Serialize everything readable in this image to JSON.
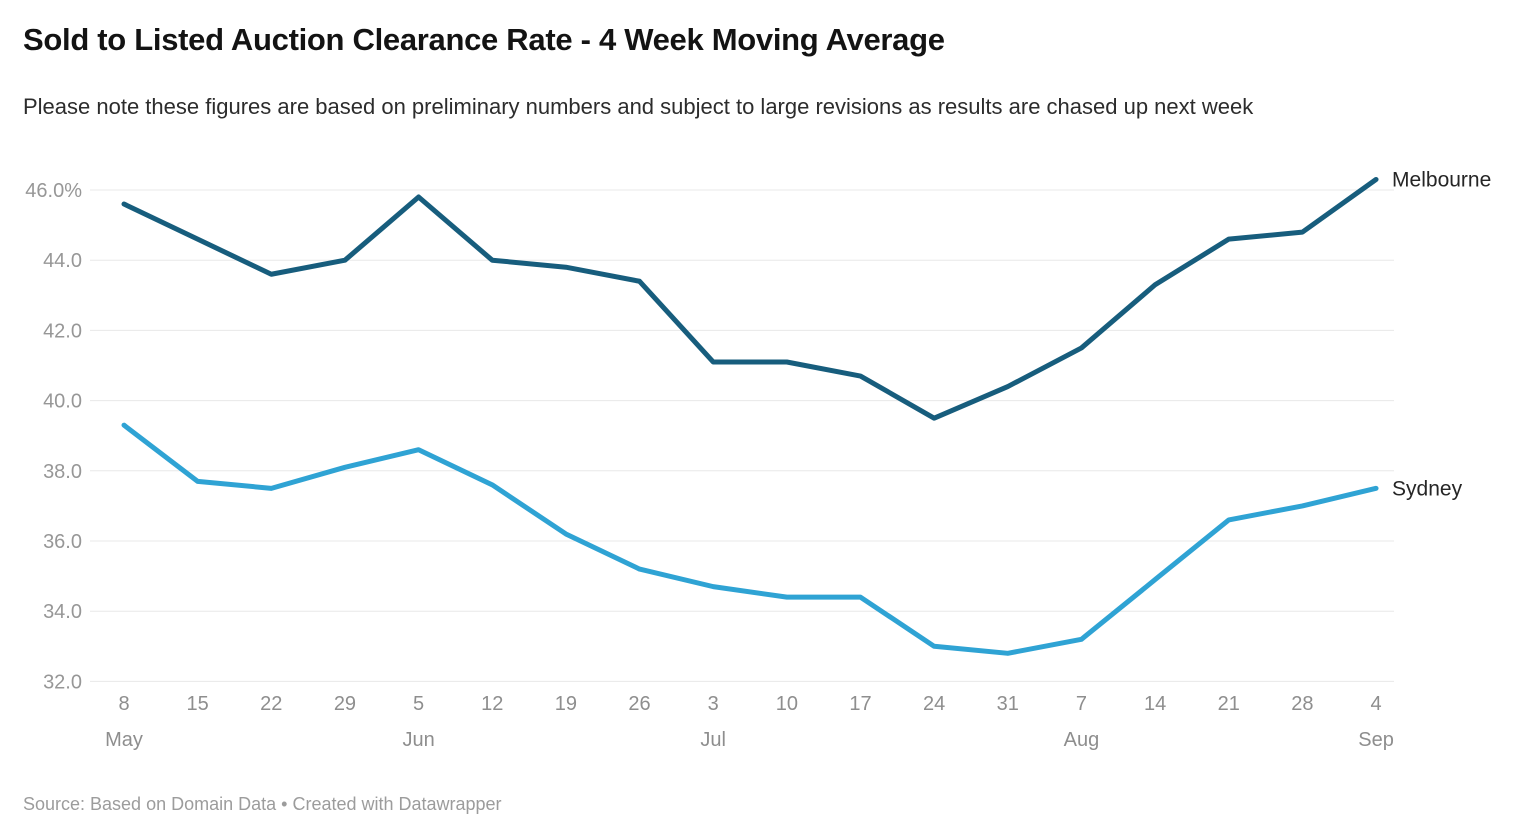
{
  "chart_data": {
    "type": "line",
    "title": "Sold to Listed Auction Clearance Rate - 4 Week Moving Average",
    "subtitle": "Please note these figures are based on preliminary numbers and subject to large revisions as results are chased up next week",
    "source": "Source: Based on Domain Data • Created with Datawrapper",
    "x_categories": [
      "May 8",
      "May 15",
      "May 22",
      "May 29",
      "Jun 5",
      "Jun 12",
      "Jun 19",
      "Jun 26",
      "Jul 3",
      "Jul 10",
      "Jul 17",
      "Jul 24",
      "Jul 31",
      "Aug 7",
      "Aug 14",
      "Aug 21",
      "Aug 28",
      "Sep 4"
    ],
    "x_tick_labels": [
      "8",
      "15",
      "22",
      "29",
      "5",
      "12",
      "19",
      "26",
      "3",
      "10",
      "17",
      "24",
      "31",
      "7",
      "14",
      "21",
      "28",
      "4"
    ],
    "months": [
      {
        "label": "May",
        "tick_index": 0
      },
      {
        "label": "Jun",
        "tick_index": 4
      },
      {
        "label": "Jul",
        "tick_index": 8
      },
      {
        "label": "Aug",
        "tick_index": 13
      },
      {
        "label": "Sep",
        "tick_index": 17
      }
    ],
    "y_ticks": [
      32,
      34,
      36,
      38,
      40,
      42,
      44,
      46
    ],
    "y_tick_labels": [
      "32.0",
      "34.0",
      "36.0",
      "38.0",
      "40.0",
      "42.0",
      "44.0",
      "46.0%"
    ],
    "ylim": [
      32,
      46.5
    ],
    "unit": "%",
    "grid": "horizontal",
    "legend": "direct labels at right end of lines",
    "series": [
      {
        "name": "Melbourne",
        "color": "#175d7d",
        "values": [
          45.6,
          44.6,
          43.6,
          44.0,
          45.8,
          44.0,
          43.8,
          43.4,
          41.1,
          41.1,
          40.7,
          39.5,
          40.4,
          41.5,
          43.3,
          44.6,
          44.8,
          46.3
        ]
      },
      {
        "name": "Sydney",
        "color": "#2fa3d4",
        "values": [
          39.3,
          37.7,
          37.5,
          38.1,
          38.6,
          37.6,
          36.2,
          35.2,
          34.7,
          34.4,
          34.4,
          33.0,
          32.8,
          33.2,
          34.9,
          36.6,
          37.0,
          37.5
        ]
      }
    ]
  }
}
